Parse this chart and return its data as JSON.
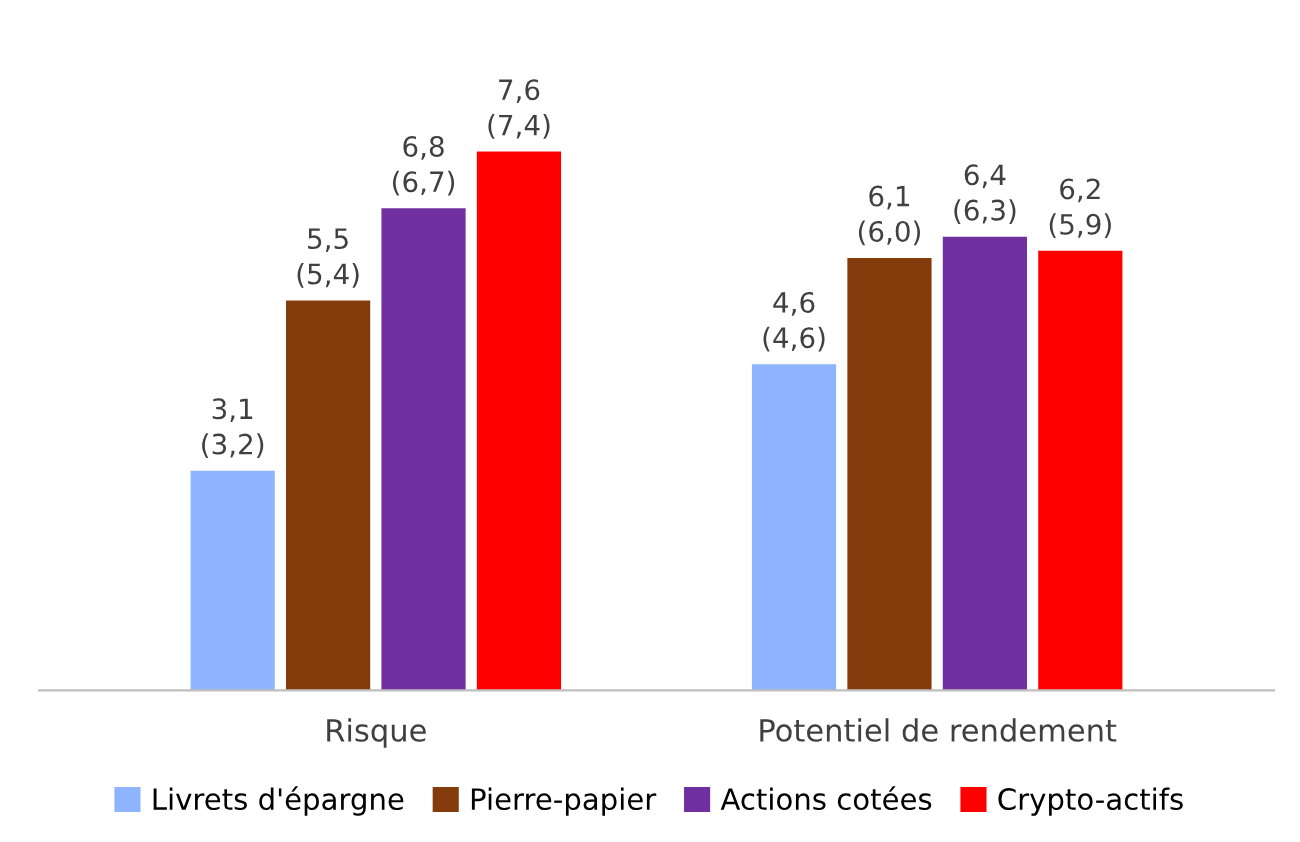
{
  "chart_data": {
    "type": "bar",
    "categories": [
      "Risque",
      "Potentiel de rendement"
    ],
    "series": [
      {
        "name": "Livrets d'épargne",
        "color": "#8fb4ff",
        "values": [
          3.1,
          4.6
        ],
        "value_labels": [
          "3,1\n(3,2)",
          "4,6\n(4,6)"
        ]
      },
      {
        "name": "Pierre-papier",
        "color": "#843c0c",
        "values": [
          5.5,
          6.1
        ],
        "value_labels": [
          "5,5\n(5,4)",
          "6,1\n(6,0)"
        ]
      },
      {
        "name": "Actions cotées",
        "color": "#7030a0",
        "values": [
          6.8,
          6.4
        ],
        "value_labels": [
          "6,8\n(6,7)",
          "6,4\n(6,3)"
        ]
      },
      {
        "name": "Crypto-actifs",
        "color": "#ff0000",
        "values": [
          7.6,
          6.2
        ],
        "value_labels": [
          "7,6\n(7,4)",
          "6,2\n(5,9)"
        ]
      }
    ],
    "grid": false,
    "legend": "bottom"
  }
}
